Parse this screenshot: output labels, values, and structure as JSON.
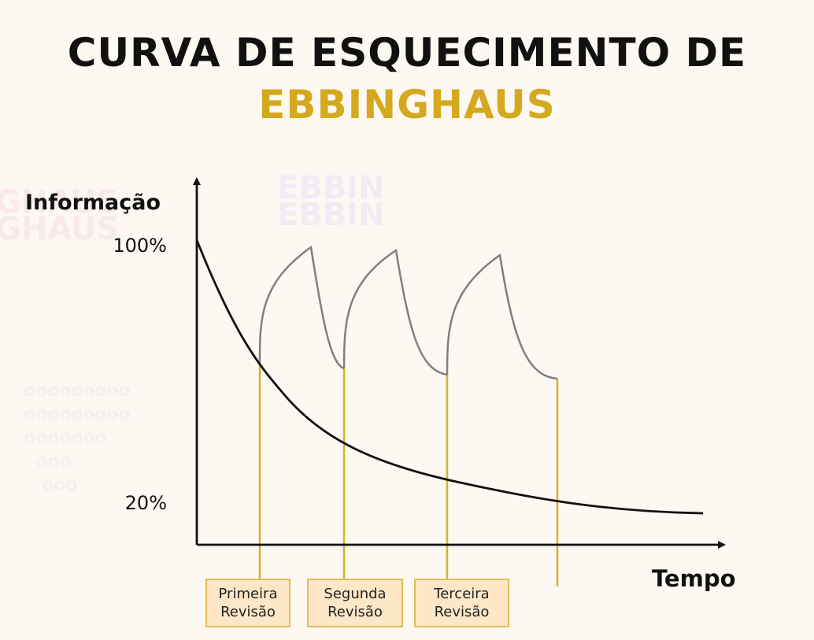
{
  "title": {
    "line1": "CURVA DE ESQUECIMENTO DE",
    "line2": "EBBINGHAUS"
  },
  "axes": {
    "y_label": "Informação",
    "x_label": "Tempo",
    "y_ticks": [
      "100%",
      "20%"
    ]
  },
  "reviews": [
    {
      "line1": "Primeira",
      "line2": "Revisão"
    },
    {
      "line1": "Segunda",
      "line2": "Revisão"
    },
    {
      "line1": "Terceira",
      "line2": "Revisão"
    }
  ],
  "colors": {
    "background": "#fdf8f2",
    "title": "#111111",
    "accent": "#d4a91f",
    "forgetting_curve": "#111111",
    "review_curves": "#808080",
    "review_lines": "#d9b12a",
    "label_fill": "#fde7c6",
    "label_border": "#e3bd54"
  }
}
